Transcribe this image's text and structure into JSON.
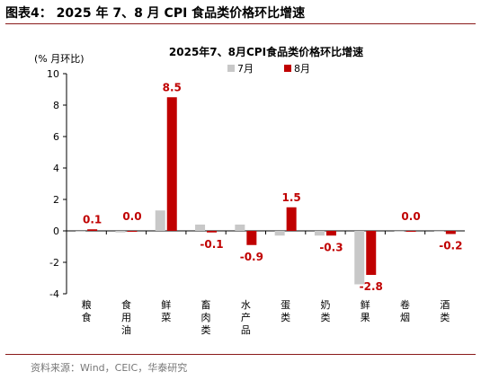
{
  "figure": {
    "heading": "图表4： 2025 年 7、8 月 CPI 食品类价格环比增速",
    "source": "资料来源：Wind，CEIC，华泰研究"
  },
  "chart_data": {
    "type": "bar",
    "title": "2025年7、8月CPI食品类价格环比增速",
    "ylabel": "(% 月环比)",
    "xlabel": "",
    "ylim": [
      -4,
      10
    ],
    "yticks": [
      10,
      8,
      6,
      4,
      2,
      0,
      -2,
      -4
    ],
    "grid": false,
    "legend": "top",
    "categories": [
      "粮食",
      "食用油",
      "鲜菜",
      "畜肉类",
      "水产品",
      "蛋类",
      "奶类",
      "鲜果",
      "卷烟",
      "酒类"
    ],
    "series": [
      {
        "name": "7月",
        "color": "#c8c8c8",
        "values": [
          0.0,
          -0.1,
          1.3,
          0.4,
          0.4,
          -0.3,
          -0.3,
          -3.4,
          0.0,
          0.0
        ],
        "labels": []
      },
      {
        "name": "8月",
        "color": "#c00000",
        "values": [
          0.1,
          0.0,
          8.5,
          -0.1,
          -0.9,
          1.5,
          -0.3,
          -2.8,
          0.0,
          -0.2
        ],
        "labels": [
          "0.1",
          "0.0",
          "8.5",
          "-0.1",
          "-0.9",
          "1.5",
          "-0.3",
          "-2.8",
          "0.0",
          "-0.2"
        ]
      }
    ]
  }
}
